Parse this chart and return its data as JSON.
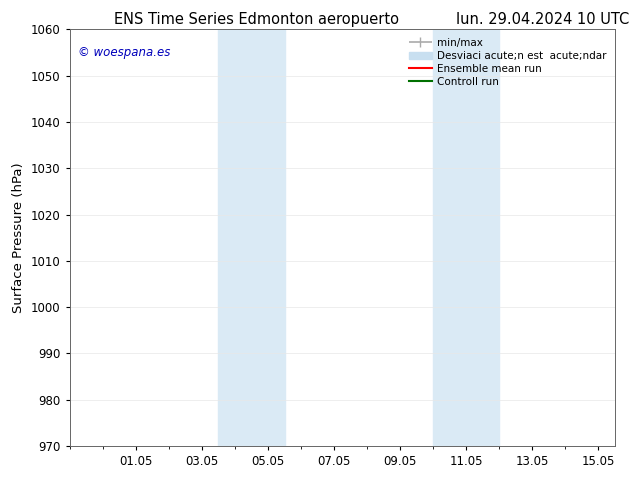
{
  "title_left": "ENS Time Series Edmonton aeropuerto",
  "title_right": "lun. 29.04.2024 10 UTC",
  "ylabel": "Surface Pressure (hPa)",
  "ylim": [
    970,
    1060
  ],
  "yticks": [
    970,
    980,
    990,
    1000,
    1010,
    1020,
    1030,
    1040,
    1050,
    1060
  ],
  "xtick_labels": [
    "01.05",
    "03.05",
    "05.05",
    "07.05",
    "09.05",
    "11.05",
    "13.05",
    "15.05"
  ],
  "xtick_positions": [
    2,
    4,
    6,
    8,
    10,
    12,
    14,
    16
  ],
  "xlim": [
    0,
    16.5
  ],
  "shaded_bands": [
    {
      "x_start": 4.5,
      "x_end": 6.5
    },
    {
      "x_start": 11.0,
      "x_end": 13.0
    }
  ],
  "watermark_text": "© woespana.es",
  "watermark_color": "#0000bb",
  "legend_labels": [
    "min/max",
    "Desviaci acute;n est  acute;ndar",
    "Ensemble mean run",
    "Controll run"
  ],
  "legend_colors": [
    "#aaaaaa",
    "#c8dff0",
    "#ff0000",
    "#007000"
  ],
  "background_color": "#ffffff",
  "band_color": "#daeaf5",
  "title_fontsize": 10.5,
  "tick_fontsize": 8.5,
  "ylabel_fontsize": 9.5,
  "legend_fontsize": 7.5
}
